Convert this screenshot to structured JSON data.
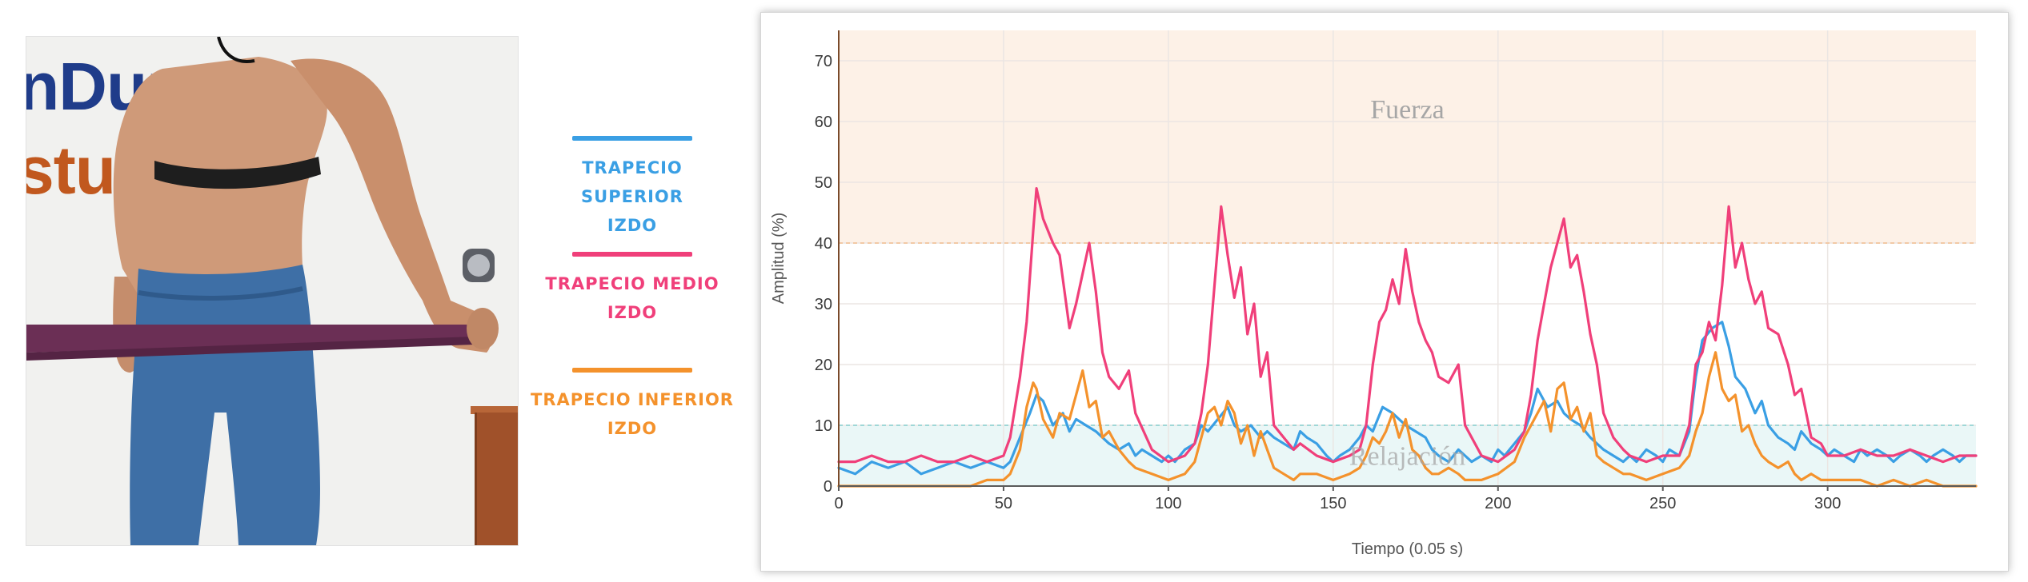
{
  "photo": {
    "wall_text_line1": "nDura",
    "wall_text_line2": "stud"
  },
  "legend": [
    {
      "label": "TRAPECIO SUPERIOR\nIZDO",
      "color": "#3a9fe4"
    },
    {
      "label": "TRAPECIO MEDIO\nIZDO",
      "color": "#f03f7a"
    },
    {
      "label": "TRAPECIO INFERIOR\nIZDO",
      "color": "#f4922c"
    }
  ],
  "chart_data": {
    "type": "line",
    "xlabel": "Tiempo (0.05 s)",
    "ylabel": "Amplitud (%)",
    "xlim": [
      0,
      345
    ],
    "ylim": [
      0,
      75
    ],
    "xticks": [
      0,
      50,
      100,
      150,
      200,
      250,
      300
    ],
    "yticks": [
      0,
      10,
      20,
      30,
      40,
      50,
      60,
      70
    ],
    "grid": true,
    "bands": [
      {
        "label": "Fuerza",
        "from": 40,
        "to": 75,
        "color": "#fdf1e7",
        "edge": "#f2c9a6"
      },
      {
        "label": "Relajación",
        "from": 0,
        "to": 10,
        "color": "#eaf7f7",
        "edge": "#9fd7d7"
      }
    ],
    "series": [
      {
        "name": "TRAPECIO SUPERIOR IZDO",
        "color": "#3a9fe4",
        "x": [
          0,
          5,
          10,
          15,
          20,
          25,
          30,
          35,
          40,
          45,
          50,
          52,
          55,
          58,
          60,
          62,
          65,
          68,
          70,
          72,
          75,
          78,
          80,
          82,
          85,
          88,
          90,
          92,
          95,
          98,
          100,
          102,
          105,
          108,
          110,
          112,
          115,
          118,
          120,
          122,
          125,
          128,
          130,
          132,
          135,
          138,
          140,
          142,
          145,
          148,
          150,
          152,
          155,
          158,
          160,
          162,
          165,
          168,
          170,
          172,
          175,
          178,
          180,
          182,
          185,
          188,
          190,
          192,
          195,
          198,
          200,
          202,
          205,
          208,
          210,
          212,
          215,
          218,
          220,
          222,
          225,
          228,
          230,
          232,
          235,
          238,
          240,
          242,
          245,
          248,
          250,
          252,
          255,
          258,
          260,
          262,
          265,
          268,
          270,
          272,
          275,
          278,
          280,
          282,
          285,
          288,
          290,
          292,
          295,
          298,
          300,
          302,
          305,
          308,
          310,
          312,
          315,
          318,
          320,
          322,
          325,
          328,
          330,
          332,
          335,
          338,
          340,
          342,
          345
        ],
        "y": [
          3,
          2,
          4,
          3,
          4,
          2,
          3,
          4,
          3,
          4,
          3,
          4,
          8,
          12,
          15,
          14,
          10,
          12,
          9,
          11,
          10,
          9,
          8,
          7,
          6,
          7,
          5,
          6,
          5,
          4,
          5,
          4,
          6,
          7,
          10,
          9,
          11,
          13,
          10,
          9,
          10,
          8,
          9,
          8,
          7,
          6,
          9,
          8,
          7,
          5,
          4,
          5,
          6,
          8,
          10,
          9,
          13,
          12,
          11,
          10,
          9,
          8,
          6,
          5,
          4,
          6,
          5,
          4,
          5,
          4,
          6,
          5,
          7,
          9,
          12,
          16,
          13,
          14,
          12,
          11,
          10,
          8,
          7,
          6,
          5,
          4,
          5,
          4,
          6,
          5,
          4,
          6,
          5,
          9,
          18,
          24,
          26,
          27,
          23,
          18,
          16,
          12,
          14,
          10,
          8,
          7,
          6,
          9,
          7,
          6,
          5,
          6,
          5,
          4,
          6,
          5,
          6,
          5,
          4,
          5,
          6,
          5,
          4,
          5,
          6,
          5,
          4,
          5,
          5
        ]
      },
      {
        "name": "TRAPECIO MEDIO IZDO",
        "color": "#f03f7a",
        "x": [
          0,
          5,
          10,
          15,
          20,
          25,
          30,
          35,
          40,
          45,
          50,
          52,
          55,
          57,
          59,
          60,
          62,
          65,
          67,
          70,
          72,
          74,
          76,
          78,
          80,
          82,
          85,
          88,
          90,
          95,
          100,
          105,
          108,
          110,
          112,
          114,
          116,
          118,
          120,
          122,
          124,
          126,
          128,
          130,
          132,
          135,
          138,
          140,
          145,
          150,
          155,
          158,
          160,
          162,
          164,
          166,
          168,
          170,
          172,
          174,
          176,
          178,
          180,
          182,
          185,
          188,
          190,
          195,
          200,
          205,
          208,
          210,
          212,
          214,
          216,
          218,
          220,
          222,
          224,
          226,
          228,
          230,
          232,
          235,
          238,
          240,
          245,
          250,
          255,
          258,
          260,
          262,
          264,
          266,
          268,
          270,
          272,
          274,
          276,
          278,
          280,
          282,
          285,
          288,
          290,
          292,
          295,
          298,
          300,
          305,
          310,
          315,
          320,
          325,
          330,
          335,
          340,
          345
        ],
        "y": [
          4,
          4,
          5,
          4,
          4,
          5,
          4,
          4,
          5,
          4,
          5,
          8,
          18,
          27,
          42,
          49,
          44,
          40,
          38,
          26,
          30,
          35,
          40,
          32,
          22,
          18,
          16,
          19,
          12,
          6,
          4,
          5,
          7,
          12,
          20,
          33,
          46,
          38,
          31,
          36,
          25,
          30,
          18,
          22,
          10,
          8,
          6,
          7,
          5,
          4,
          5,
          6,
          10,
          20,
          27,
          29,
          34,
          30,
          39,
          32,
          27,
          24,
          22,
          18,
          17,
          20,
          10,
          5,
          4,
          6,
          9,
          15,
          24,
          30,
          36,
          40,
          44,
          36,
          38,
          32,
          25,
          20,
          12,
          8,
          6,
          5,
          4,
          5,
          5,
          10,
          20,
          22,
          27,
          24,
          33,
          46,
          36,
          40,
          34,
          30,
          32,
          26,
          25,
          20,
          15,
          16,
          8,
          7,
          5,
          5,
          6,
          5,
          5,
          6,
          5,
          4,
          5,
          5
        ]
      },
      {
        "name": "TRAPECIO INFERIOR IZDO",
        "color": "#f4922c",
        "x": [
          0,
          5,
          10,
          15,
          20,
          25,
          30,
          35,
          40,
          45,
          50,
          52,
          55,
          57,
          59,
          60,
          62,
          65,
          67,
          70,
          72,
          74,
          76,
          78,
          80,
          82,
          85,
          88,
          90,
          95,
          100,
          105,
          108,
          110,
          112,
          114,
          116,
          118,
          120,
          122,
          124,
          126,
          128,
          130,
          132,
          135,
          138,
          140,
          145,
          150,
          155,
          158,
          160,
          162,
          164,
          166,
          168,
          170,
          172,
          174,
          176,
          178,
          180,
          182,
          185,
          188,
          190,
          195,
          200,
          205,
          208,
          210,
          212,
          214,
          216,
          218,
          220,
          222,
          224,
          226,
          228,
          230,
          232,
          235,
          238,
          240,
          245,
          250,
          255,
          258,
          260,
          262,
          264,
          266,
          268,
          270,
          272,
          274,
          276,
          278,
          280,
          282,
          285,
          288,
          290,
          292,
          295,
          298,
          300,
          305,
          310,
          315,
          320,
          325,
          330,
          335,
          340,
          345
        ],
        "y": [
          0,
          0,
          0,
          0,
          0,
          0,
          0,
          0,
          0,
          1,
          1,
          2,
          6,
          13,
          17,
          16,
          11,
          8,
          12,
          11,
          15,
          19,
          13,
          14,
          8,
          9,
          6,
          4,
          3,
          2,
          1,
          2,
          4,
          8,
          12,
          13,
          10,
          14,
          12,
          7,
          10,
          5,
          9,
          6,
          3,
          2,
          1,
          2,
          2,
          1,
          2,
          3,
          5,
          8,
          7,
          9,
          12,
          8,
          11,
          6,
          5,
          3,
          2,
          2,
          3,
          2,
          1,
          1,
          2,
          4,
          8,
          10,
          12,
          14,
          9,
          16,
          17,
          11,
          13,
          9,
          12,
          5,
          4,
          3,
          2,
          2,
          1,
          2,
          3,
          5,
          9,
          12,
          18,
          22,
          16,
          14,
          15,
          9,
          10,
          7,
          5,
          4,
          3,
          4,
          2,
          1,
          2,
          1,
          1,
          1,
          1,
          0,
          1,
          0,
          1,
          0,
          0,
          0
        ]
      }
    ]
  }
}
